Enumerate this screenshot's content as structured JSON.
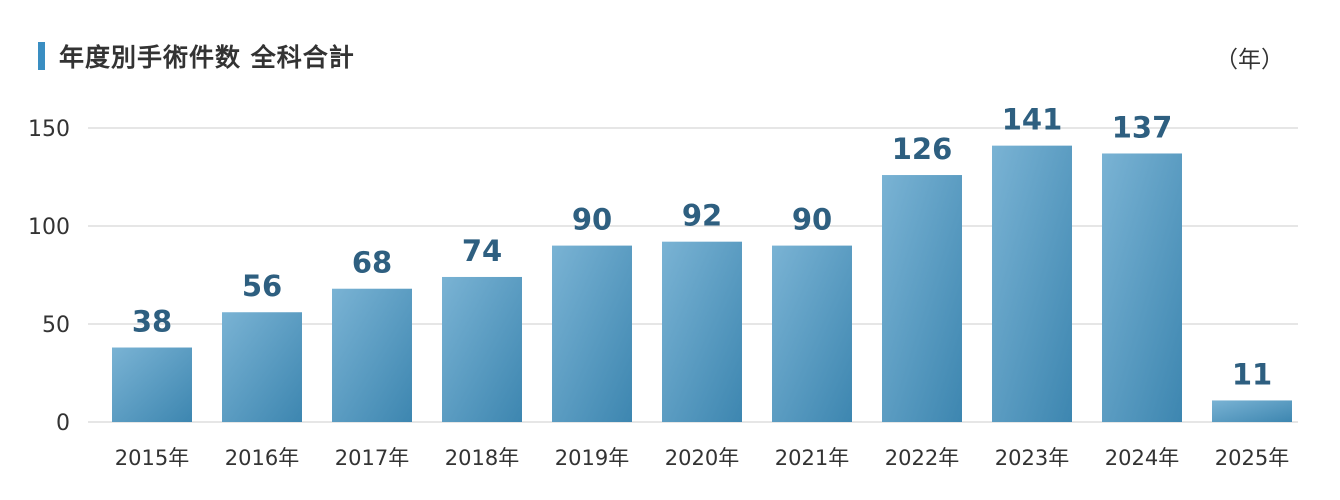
{
  "title": "年度別手術件数 全科合計",
  "unit_label": "（年）",
  "colors": {
    "title_bar": "#3a8ec2",
    "bar_light": "#7ab3d4",
    "bar_dark": "#3d86b0",
    "value_label": "#2e5f80",
    "grid": "#dddddd",
    "tick_text": "#333333"
  },
  "chart_data": {
    "type": "bar",
    "title": "年度別手術件数 全科合計",
    "xlabel": "（年）",
    "ylabel": "",
    "categories": [
      "2015年",
      "2016年",
      "2017年",
      "2018年",
      "2019年",
      "2020年",
      "2021年",
      "2022年",
      "2023年",
      "2024年",
      "2025年"
    ],
    "values": [
      38,
      56,
      68,
      74,
      90,
      92,
      90,
      126,
      141,
      137,
      11
    ],
    "value_labels": [
      "38",
      "56",
      "68",
      "74",
      "90",
      "92",
      "90",
      "126",
      "141",
      "137",
      "11"
    ],
    "y_ticks": [
      0,
      50,
      100,
      150
    ],
    "y_tick_labels": [
      "0",
      "50",
      "100",
      "150"
    ],
    "ylim": [
      0,
      150
    ],
    "grid": true,
    "legend": "none"
  }
}
